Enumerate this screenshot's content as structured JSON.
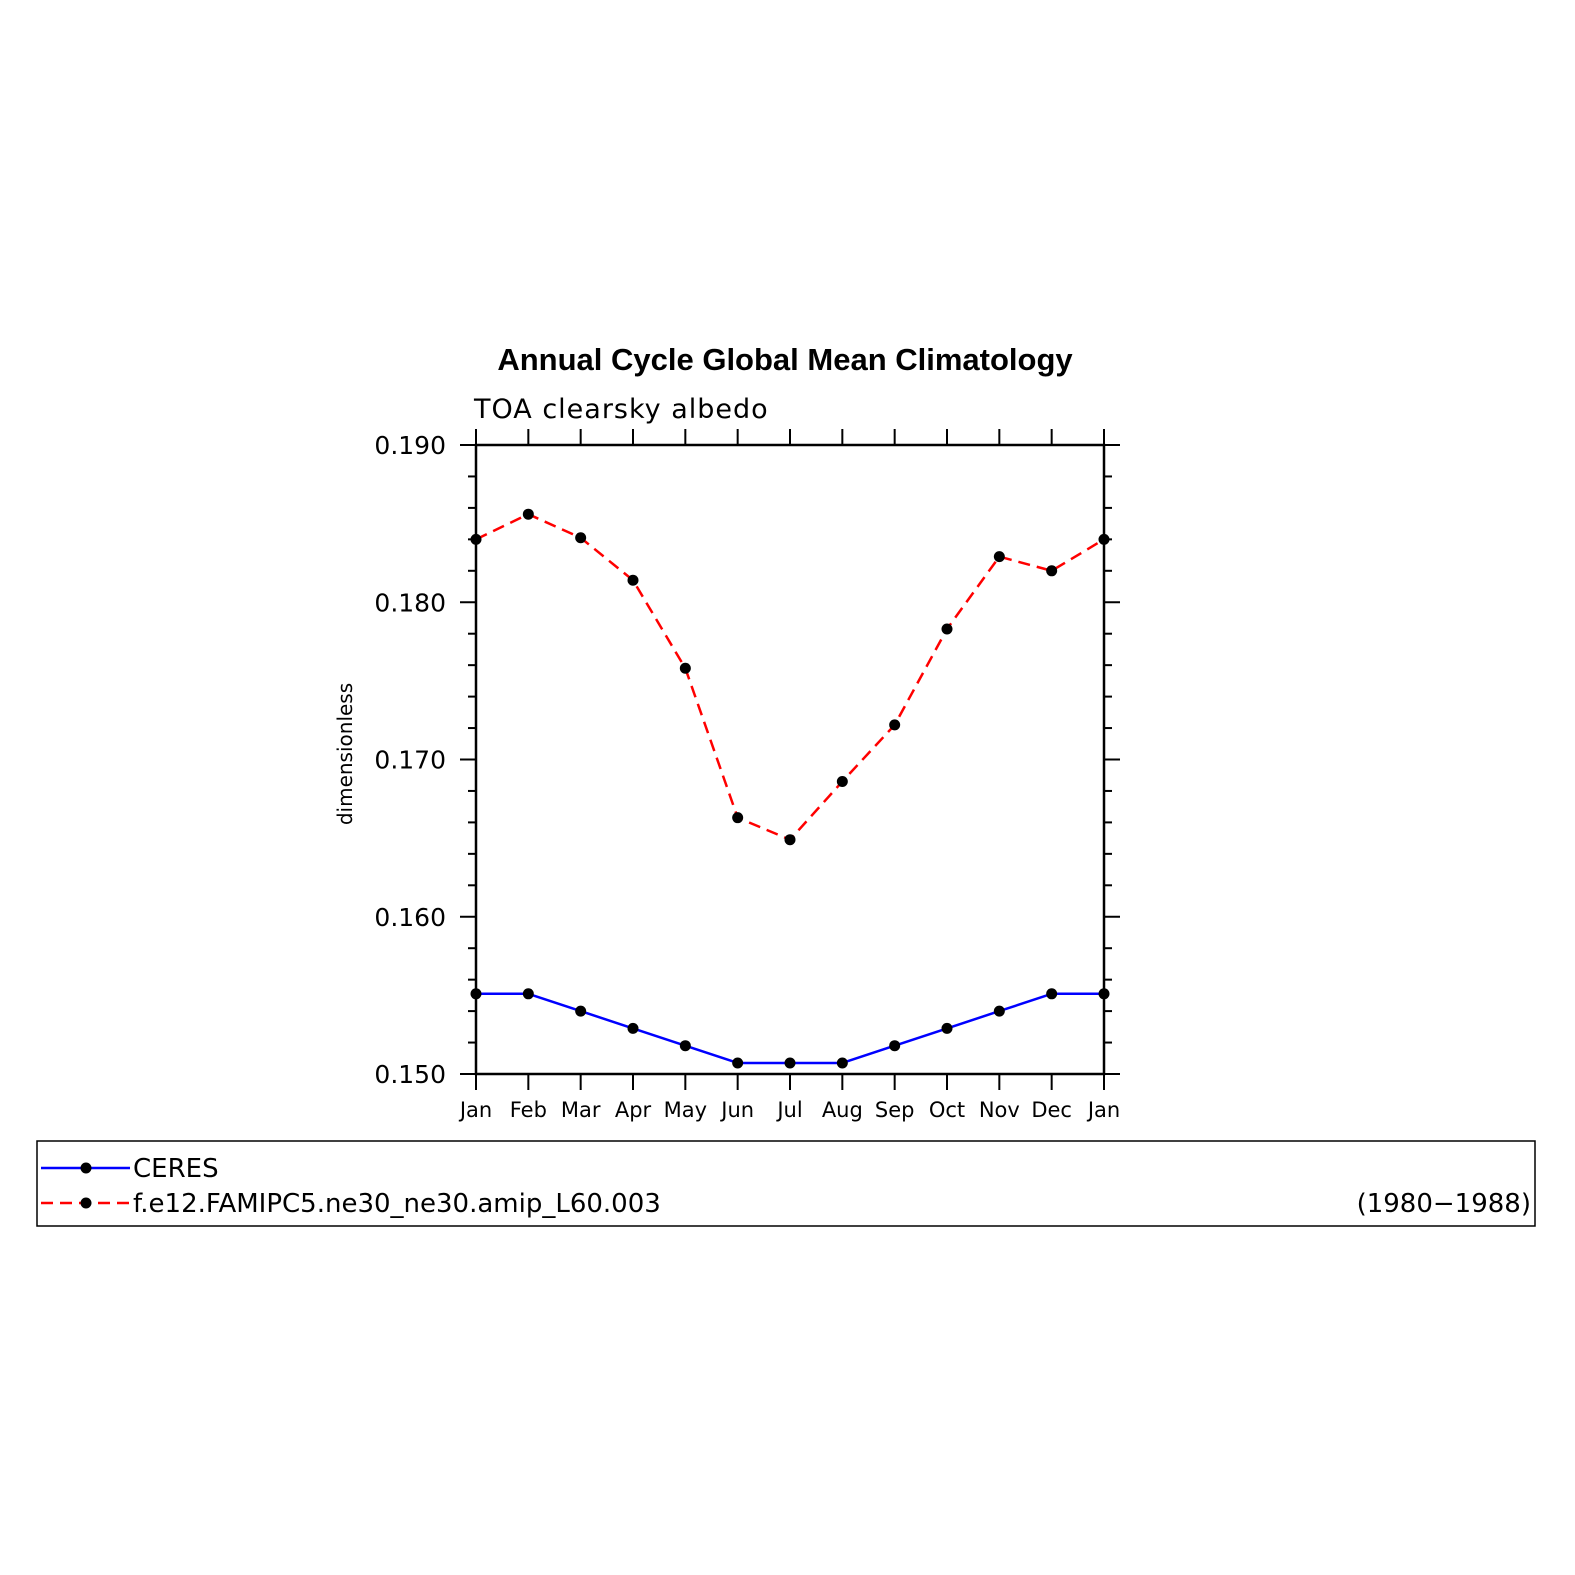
{
  "chart_data": {
    "type": "line",
    "title": "Annual Cycle Global Mean Climatology",
    "subtitle": "TOA clearsky albedo",
    "ylabel": "dimensionless",
    "xlabel": "",
    "categories": [
      "Jan",
      "Feb",
      "Mar",
      "Apr",
      "May",
      "Jun",
      "Jul",
      "Aug",
      "Sep",
      "Oct",
      "Nov",
      "Dec",
      "Jan"
    ],
    "ylim": [
      0.15,
      0.19
    ],
    "yticks": [
      "0.150",
      "0.160",
      "0.170",
      "0.180",
      "0.190"
    ],
    "series": [
      {
        "name": "CERES",
        "color": "#0000ff",
        "dash": "solid",
        "marker": "filled-circle",
        "values": [
          0.1551,
          0.1551,
          0.154,
          0.1529,
          0.1518,
          0.1507,
          0.1507,
          0.1507,
          0.1518,
          0.1529,
          0.154,
          0.1551,
          0.1551
        ]
      },
      {
        "name": "f.e12.FAMIPC5.ne30_ne30.amip_L60.003",
        "color": "#ff0000",
        "dash": "dashed",
        "marker": "filled-circle",
        "values": [
          0.184,
          0.1856,
          0.1841,
          0.1814,
          0.1758,
          0.1663,
          0.1649,
          0.1686,
          0.1722,
          0.1783,
          0.1829,
          0.182,
          0.184
        ]
      }
    ],
    "legend": {
      "placement": "bottom",
      "period": "(1980−1988)"
    },
    "grid": false
  }
}
